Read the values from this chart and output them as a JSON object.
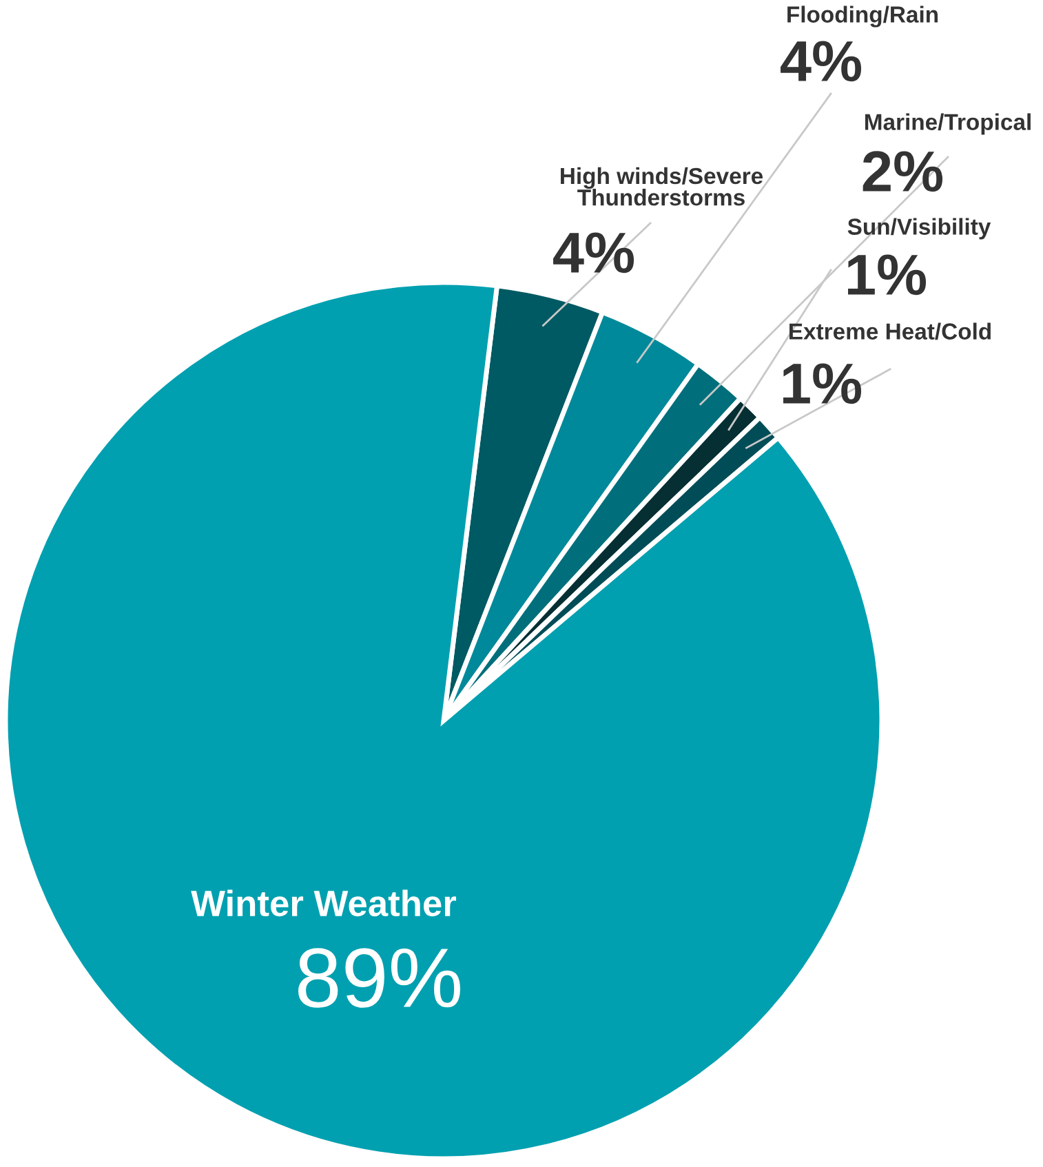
{
  "chart_data": {
    "type": "pie",
    "categories": [
      "High winds/Severe\nThunderstorms",
      "Flooding/Rain",
      "Marine/Tropical",
      "Sun/Visibility",
      "Extreme Heat/Cold",
      "Winter Weather"
    ],
    "values": [
      4,
      4,
      2,
      1,
      1,
      89
    ],
    "colors": [
      "#005a63",
      "#00899a",
      "#006f7b",
      "#062f33",
      "#004d58",
      "#00a0b0"
    ],
    "value_labels": [
      "4%",
      "4%",
      "2%",
      "1%",
      "1%",
      "89%"
    ]
  }
}
